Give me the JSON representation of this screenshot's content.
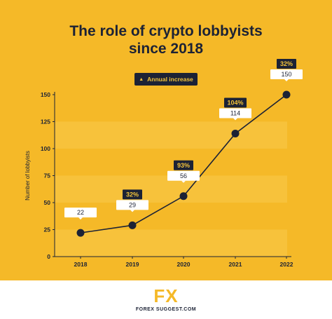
{
  "legend": {
    "label": "Annual increase",
    "icon": "triangle-up-icon"
  },
  "brand": {
    "logo": "FX",
    "name": "FOREX SUGGEST.COM"
  },
  "colors": {
    "background": "#f5b928",
    "dark": "#1c2235",
    "accent": "#f2c23a",
    "band": "#f7cb4a"
  },
  "chart_data": {
    "type": "line",
    "title": "The role of crypto lobbyists since 2018",
    "title_lines": [
      "The role of crypto lobbyists",
      "since 2018"
    ],
    "xlabel": "",
    "ylabel": "Number of lobbyists",
    "categories": [
      "2018",
      "2019",
      "2020",
      "2021",
      "2022"
    ],
    "series": [
      {
        "values": [
          22,
          29,
          56,
          114,
          150
        ],
        "data_labels": [
          "22",
          "29",
          "56",
          "114",
          "150"
        ]
      }
    ],
    "annual_increase": [
      "",
      "32%",
      "93%",
      "104%",
      "32%"
    ],
    "yticks": [
      0,
      25,
      50,
      75,
      100,
      125,
      150
    ],
    "ylim": [
      0,
      150
    ],
    "grid": false,
    "legend_position": "top-center"
  }
}
